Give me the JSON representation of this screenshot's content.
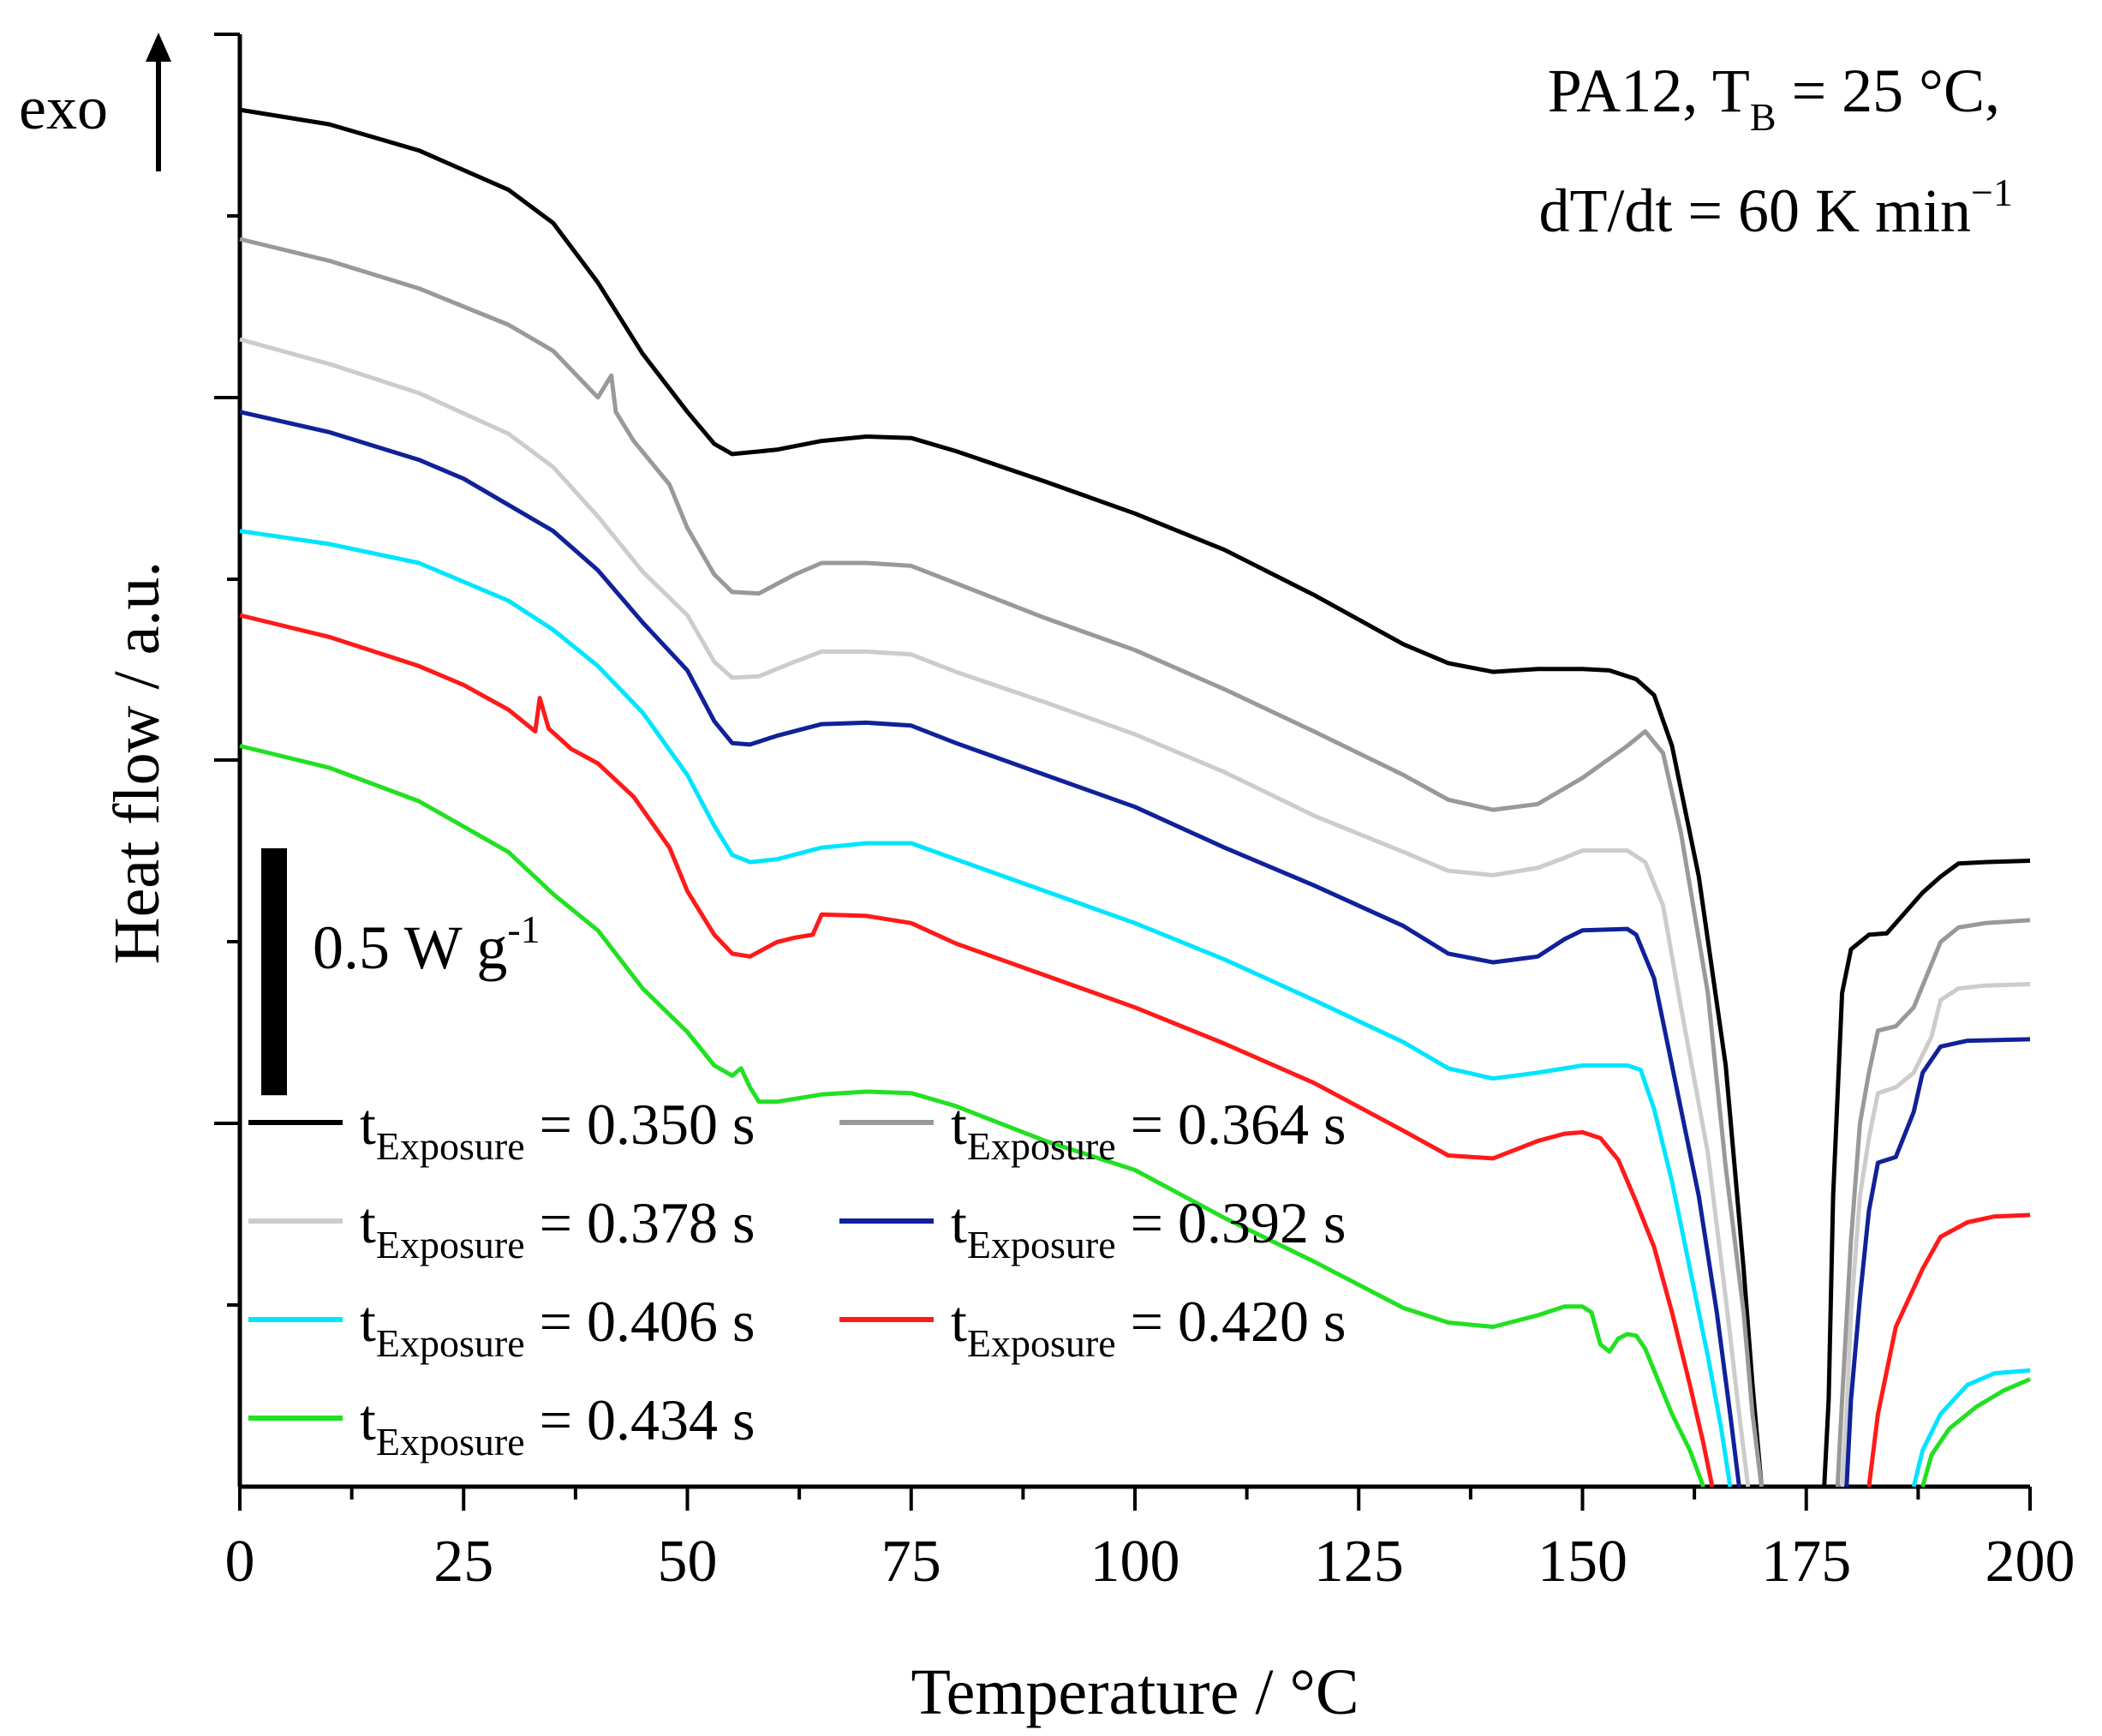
{
  "chart_data": {
    "type": "line",
    "title": "",
    "xlabel": "Temperature / °C",
    "ylabel": "Heat flow / a.u.",
    "xlim": [
      0,
      200
    ],
    "ylim": [
      0,
      1
    ],
    "xticks": [
      "0",
      "25",
      "50",
      "75",
      "100",
      "125",
      "150",
      "175",
      "200"
    ],
    "xtick_values": [
      0,
      25,
      50,
      75,
      100,
      125,
      150,
      175,
      200
    ],
    "grid": false,
    "legend_position": "bottom-left",
    "annotations": {
      "exo_label": "exo",
      "condition_line1_prefix": "PA12, T",
      "condition_line1_sub": "B",
      "condition_line1_suffix": " = 25 °C,",
      "condition_line2_prefix": "dT/dt = 60 K min",
      "condition_line2_sup": "−1",
      "scale_bar_prefix": "0.5 W g",
      "scale_bar_sup": "-1",
      "scale_bar_value": 0.17
    },
    "legend_label_prefix": "t",
    "legend_label_sub": "Exposure",
    "series": [
      {
        "name": "0.350 s",
        "legend_value": " = 0.350 s",
        "color": "#000000",
        "points": [
          [
            0,
            0.948
          ],
          [
            10,
            0.938
          ],
          [
            20,
            0.92
          ],
          [
            30,
            0.893
          ],
          [
            35,
            0.87
          ],
          [
            40,
            0.829
          ],
          [
            45,
            0.78
          ],
          [
            50,
            0.74
          ],
          [
            53,
            0.718
          ],
          [
            55,
            0.711
          ],
          [
            60,
            0.714
          ],
          [
            65,
            0.72
          ],
          [
            70,
            0.723
          ],
          [
            75,
            0.722
          ],
          [
            80,
            0.713
          ],
          [
            90,
            0.692
          ],
          [
            100,
            0.67
          ],
          [
            110,
            0.645
          ],
          [
            120,
            0.614
          ],
          [
            130,
            0.58
          ],
          [
            135,
            0.567
          ],
          [
            140,
            0.561
          ],
          [
            145,
            0.563
          ],
          [
            150,
            0.563
          ],
          [
            153,
            0.562
          ],
          [
            156,
            0.556
          ],
          [
            158,
            0.545
          ],
          [
            160,
            0.51
          ],
          [
            163,
            0.42
          ],
          [
            166,
            0.29
          ],
          [
            168,
            0.15
          ],
          [
            169,
            0.07
          ],
          [
            170,
            0.0
          ]
        ]
      },
      {
        "name": "0.364 s",
        "legend_value": " = 0.364 s",
        "color": "#999999",
        "points": [
          [
            0,
            0.859
          ],
          [
            10,
            0.844
          ],
          [
            20,
            0.825
          ],
          [
            30,
            0.8
          ],
          [
            35,
            0.782
          ],
          [
            40,
            0.75
          ],
          [
            41.5,
            0.765
          ],
          [
            42,
            0.74
          ],
          [
            44,
            0.72
          ],
          [
            48,
            0.69
          ],
          [
            50,
            0.66
          ],
          [
            53,
            0.628
          ],
          [
            55,
            0.616
          ],
          [
            58,
            0.615
          ],
          [
            62,
            0.628
          ],
          [
            65,
            0.636
          ],
          [
            70,
            0.636
          ],
          [
            75,
            0.634
          ],
          [
            80,
            0.622
          ],
          [
            90,
            0.598
          ],
          [
            100,
            0.576
          ],
          [
            110,
            0.549
          ],
          [
            120,
            0.52
          ],
          [
            130,
            0.49
          ],
          [
            135,
            0.473
          ],
          [
            140,
            0.466
          ],
          [
            145,
            0.47
          ],
          [
            150,
            0.488
          ],
          [
            155,
            0.51
          ],
          [
            157,
            0.52
          ],
          [
            159,
            0.505
          ],
          [
            161,
            0.45
          ],
          [
            164,
            0.34
          ],
          [
            166,
            0.22
          ],
          [
            168,
            0.12
          ],
          [
            169,
            0.05
          ],
          [
            170,
            0.0
          ]
        ]
      },
      {
        "name": "0.378 s",
        "legend_value": " = 0.378 s",
        "color": "#cccccc",
        "points": [
          [
            0,
            0.79
          ],
          [
            10,
            0.773
          ],
          [
            20,
            0.753
          ],
          [
            30,
            0.725
          ],
          [
            35,
            0.702
          ],
          [
            40,
            0.668
          ],
          [
            45,
            0.63
          ],
          [
            50,
            0.6
          ],
          [
            53,
            0.568
          ],
          [
            55,
            0.557
          ],
          [
            58,
            0.558
          ],
          [
            62,
            0.568
          ],
          [
            65,
            0.575
          ],
          [
            70,
            0.575
          ],
          [
            75,
            0.573
          ],
          [
            80,
            0.561
          ],
          [
            90,
            0.54
          ],
          [
            100,
            0.518
          ],
          [
            110,
            0.492
          ],
          [
            120,
            0.462
          ],
          [
            130,
            0.437
          ],
          [
            135,
            0.424
          ],
          [
            140,
            0.421
          ],
          [
            145,
            0.426
          ],
          [
            148,
            0.433
          ],
          [
            150,
            0.438
          ],
          [
            155,
            0.438
          ],
          [
            157,
            0.43
          ],
          [
            159,
            0.4
          ],
          [
            161,
            0.33
          ],
          [
            164,
            0.23
          ],
          [
            166,
            0.13
          ],
          [
            167.5,
            0.05
          ],
          [
            168.5,
            0.0
          ]
        ]
      },
      {
        "name": "0.392 s",
        "legend_value": " = 0.392 s",
        "color": "#102199",
        "points": [
          [
            0,
            0.74
          ],
          [
            10,
            0.726
          ],
          [
            20,
            0.707
          ],
          [
            25,
            0.694
          ],
          [
            30,
            0.676
          ],
          [
            35,
            0.658
          ],
          [
            40,
            0.631
          ],
          [
            45,
            0.595
          ],
          [
            50,
            0.562
          ],
          [
            53,
            0.527
          ],
          [
            55,
            0.512
          ],
          [
            57,
            0.511
          ],
          [
            60,
            0.517
          ],
          [
            65,
            0.525
          ],
          [
            70,
            0.526
          ],
          [
            75,
            0.524
          ],
          [
            80,
            0.512
          ],
          [
            90,
            0.49
          ],
          [
            100,
            0.468
          ],
          [
            110,
            0.44
          ],
          [
            120,
            0.414
          ],
          [
            130,
            0.386
          ],
          [
            135,
            0.367
          ],
          [
            140,
            0.361
          ],
          [
            145,
            0.365
          ],
          [
            148,
            0.377
          ],
          [
            150,
            0.383
          ],
          [
            155,
            0.384
          ],
          [
            156,
            0.38
          ],
          [
            158,
            0.35
          ],
          [
            160,
            0.29
          ],
          [
            163,
            0.2
          ],
          [
            165,
            0.12
          ],
          [
            166.5,
            0.05
          ],
          [
            167.5,
            0.0
          ]
        ]
      },
      {
        "name": "0.406 s",
        "legend_value": " = 0.406 s",
        "color": "#00e5ff",
        "points": [
          [
            0,
            0.658
          ],
          [
            10,
            0.649
          ],
          [
            20,
            0.636
          ],
          [
            30,
            0.61
          ],
          [
            35,
            0.59
          ],
          [
            40,
            0.565
          ],
          [
            45,
            0.533
          ],
          [
            50,
            0.49
          ],
          [
            53,
            0.455
          ],
          [
            55,
            0.435
          ],
          [
            57,
            0.43
          ],
          [
            60,
            0.432
          ],
          [
            65,
            0.44
          ],
          [
            70,
            0.443
          ],
          [
            75,
            0.443
          ],
          [
            80,
            0.432
          ],
          [
            90,
            0.41
          ],
          [
            100,
            0.388
          ],
          [
            110,
            0.363
          ],
          [
            120,
            0.335
          ],
          [
            130,
            0.306
          ],
          [
            135,
            0.288
          ],
          [
            140,
            0.281
          ],
          [
            145,
            0.285
          ],
          [
            150,
            0.29
          ],
          [
            155,
            0.29
          ],
          [
            156.5,
            0.287
          ],
          [
            158,
            0.26
          ],
          [
            160,
            0.21
          ],
          [
            162,
            0.15
          ],
          [
            164,
            0.09
          ],
          [
            165.5,
            0.04
          ],
          [
            166.5,
            0.0
          ]
        ]
      },
      {
        "name": "0.420 s",
        "legend_value": " = 0.420 s",
        "color": "#ff1a1a",
        "points": [
          [
            0,
            0.6
          ],
          [
            10,
            0.585
          ],
          [
            20,
            0.565
          ],
          [
            25,
            0.552
          ],
          [
            30,
            0.535
          ],
          [
            33,
            0.52
          ],
          [
            33.5,
            0.543
          ],
          [
            34.5,
            0.522
          ],
          [
            37,
            0.508
          ],
          [
            40,
            0.498
          ],
          [
            44,
            0.475
          ],
          [
            48,
            0.44
          ],
          [
            50,
            0.41
          ],
          [
            53,
            0.38
          ],
          [
            55,
            0.367
          ],
          [
            57,
            0.365
          ],
          [
            60,
            0.375
          ],
          [
            62,
            0.378
          ],
          [
            64,
            0.38
          ],
          [
            65,
            0.394
          ],
          [
            70,
            0.393
          ],
          [
            75,
            0.388
          ],
          [
            80,
            0.374
          ],
          [
            90,
            0.352
          ],
          [
            100,
            0.33
          ],
          [
            110,
            0.305
          ],
          [
            120,
            0.278
          ],
          [
            130,
            0.245
          ],
          [
            135,
            0.228
          ],
          [
            140,
            0.226
          ],
          [
            145,
            0.238
          ],
          [
            148,
            0.243
          ],
          [
            150,
            0.244
          ],
          [
            152,
            0.24
          ],
          [
            154,
            0.225
          ],
          [
            156,
            0.196
          ],
          [
            158,
            0.165
          ],
          [
            160,
            0.12
          ],
          [
            162,
            0.07
          ],
          [
            163.5,
            0.03
          ],
          [
            164.5,
            0.0
          ]
        ]
      },
      {
        "name": "0.434 s",
        "legend_value": " = 0.434 s",
        "color": "#22e022",
        "points": [
          [
            0,
            0.51
          ],
          [
            10,
            0.495
          ],
          [
            20,
            0.472
          ],
          [
            30,
            0.437
          ],
          [
            35,
            0.408
          ],
          [
            40,
            0.383
          ],
          [
            45,
            0.343
          ],
          [
            50,
            0.313
          ],
          [
            53,
            0.29
          ],
          [
            55,
            0.283
          ],
          [
            56,
            0.288
          ],
          [
            57,
            0.275
          ],
          [
            58,
            0.265
          ],
          [
            60,
            0.265
          ],
          [
            65,
            0.27
          ],
          [
            70,
            0.272
          ],
          [
            75,
            0.271
          ],
          [
            80,
            0.262
          ],
          [
            90,
            0.238
          ],
          [
            100,
            0.218
          ],
          [
            110,
            0.185
          ],
          [
            120,
            0.155
          ],
          [
            130,
            0.123
          ],
          [
            135,
            0.113
          ],
          [
            140,
            0.11
          ],
          [
            145,
            0.118
          ],
          [
            148,
            0.124
          ],
          [
            150,
            0.124
          ],
          [
            151,
            0.12
          ],
          [
            152,
            0.098
          ],
          [
            153,
            0.093
          ],
          [
            154,
            0.102
          ],
          [
            155,
            0.105
          ],
          [
            156,
            0.104
          ],
          [
            157,
            0.095
          ],
          [
            158,
            0.08
          ],
          [
            160,
            0.05
          ],
          [
            162,
            0.025
          ],
          [
            163.5,
            0.0
          ]
        ]
      }
    ]
  }
}
